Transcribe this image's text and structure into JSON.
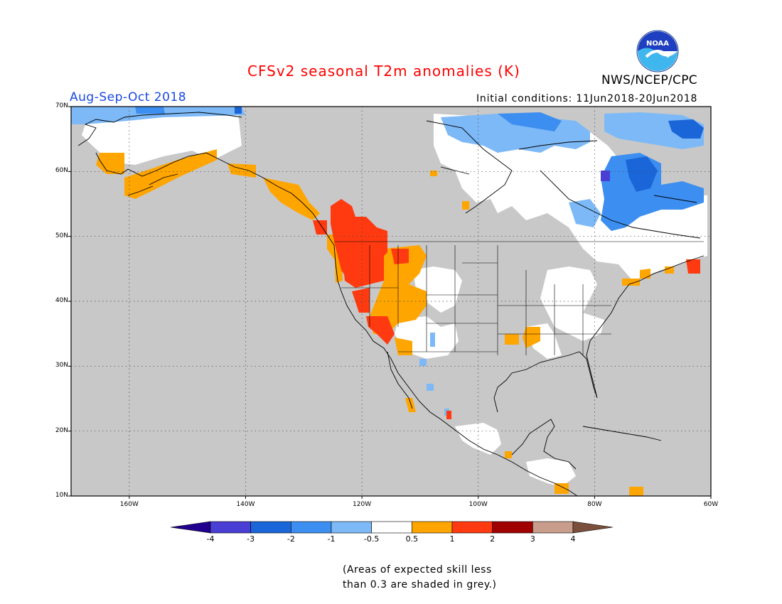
{
  "header": {
    "title": "CFSv2 seasonal T2m anomalies (K)",
    "period": "Aug-Sep-Oct 2018",
    "initial_conditions": "Initial conditions: 11Jun2018-20Jun2018",
    "agency": "NWS/NCEP/CPC",
    "logo_text": "NOAA"
  },
  "map": {
    "region": "North America",
    "lat_range": [
      10,
      70
    ],
    "lon_range": [
      -170,
      -60
    ],
    "lat_labels": [
      "70N",
      "60N",
      "50N",
      "40N",
      "30N",
      "20N",
      "10N"
    ],
    "lon_labels": [
      "160W",
      "140W",
      "120W",
      "100W",
      "80W",
      "60W"
    ],
    "colors": {
      "ocean": "#c8c8c8",
      "no_skill_land": "#c8c8c8",
      "land_low_anomaly": "#ffffff",
      "coastline": "#000000",
      "grid": "#444444"
    }
  },
  "colorbar": {
    "labels": [
      "-4",
      "-3",
      "-2",
      "-1",
      "-0.5",
      "0.5",
      "1",
      "2",
      "3",
      "4"
    ],
    "colors": [
      "#20008c",
      "#4a3fd4",
      "#1a66d8",
      "#3c8ef0",
      "#7db9f7",
      "#ffffff",
      "#ffa500",
      "#ff3a10",
      "#a00000",
      "#c89d8c",
      "#7a4f3c"
    ]
  },
  "note": {
    "line1": "(Areas of expected skill less",
    "line2": "than 0.3 are shaded in grey.)"
  }
}
